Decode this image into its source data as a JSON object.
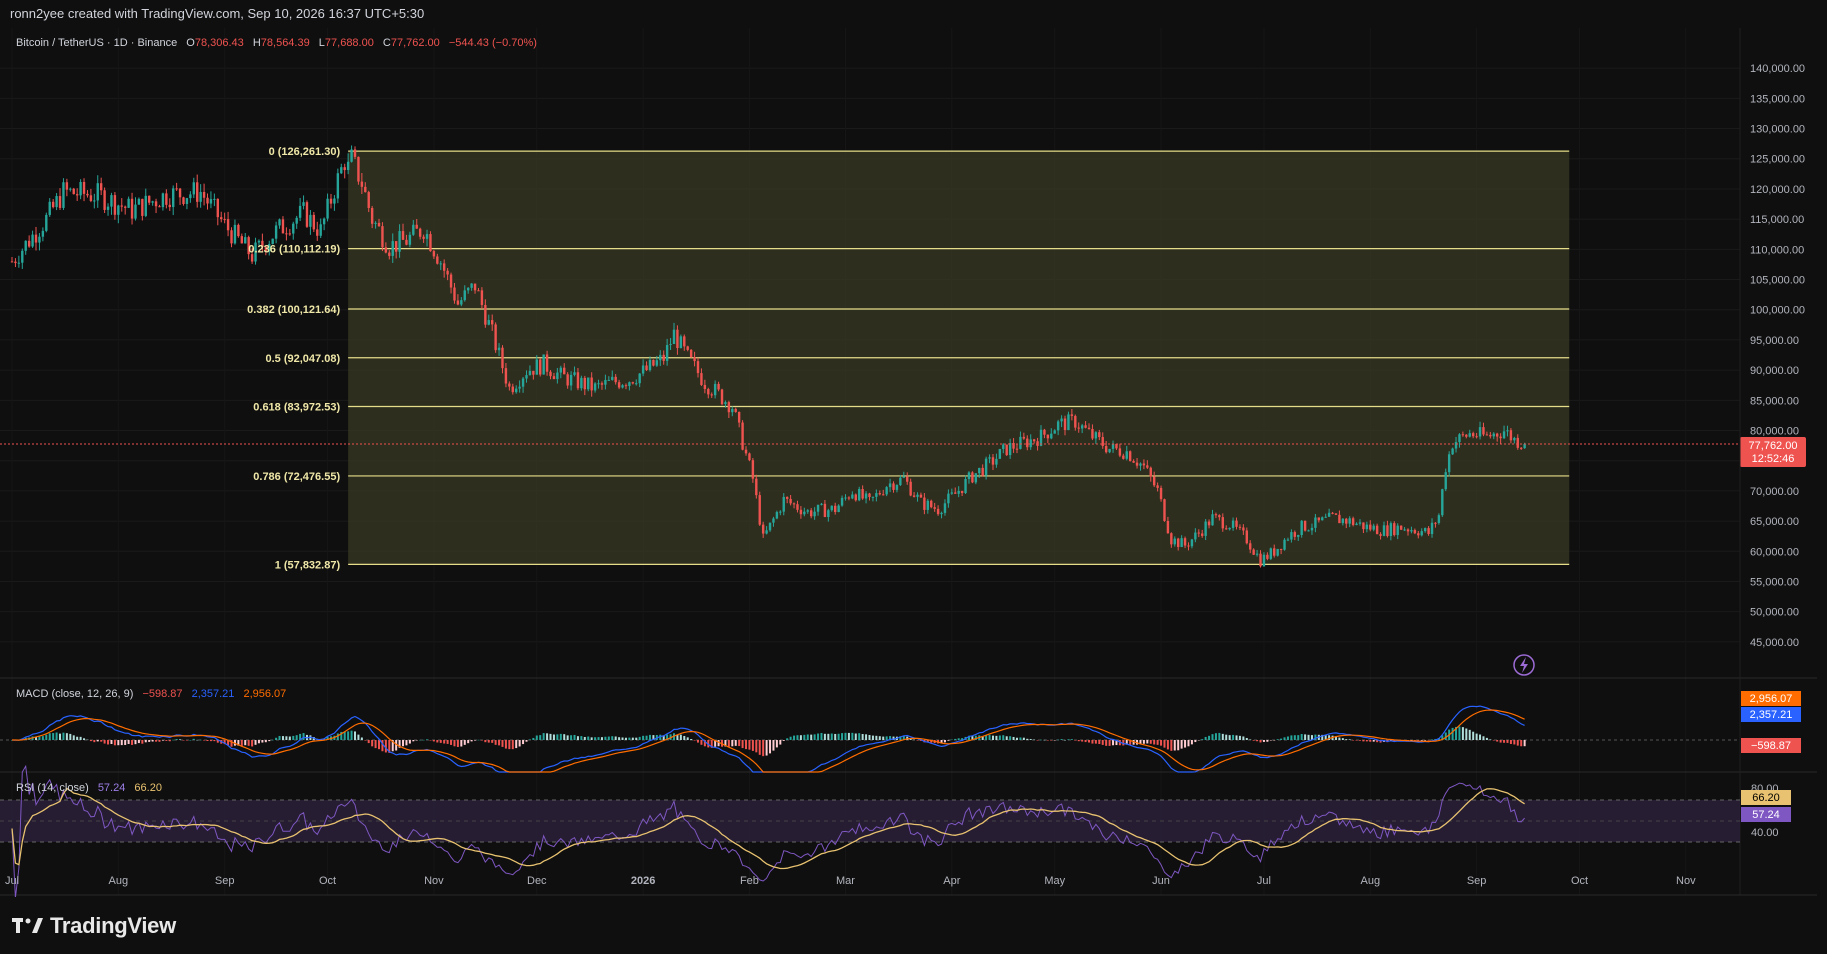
{
  "header": {
    "credit": "ronn2yee created with TradingView.com, Sep 10, 2026 16:37 UTC+5:30"
  },
  "legend": {
    "symbol": "Bitcoin / TetherUS · 1D · Binance",
    "open_label": "O",
    "open": "78,306.43",
    "high_label": "H",
    "high": "78,564.39",
    "low_label": "L",
    "low": "77,688.00",
    "close_label": "C",
    "close": "77,762.00",
    "change": "−544.43 (−0.70%)"
  },
  "branding": {
    "name": "TradingView"
  },
  "colors": {
    "up": "#26a69a",
    "down": "#ef5350",
    "fib_zone": "#3a3a24",
    "fib_line": "#e5dd8a",
    "macd": "#2962ff",
    "signal": "#ff6d00",
    "rsi": "#7e57c2",
    "rsi_ma": "#e8c270"
  },
  "chart_data": [
    {
      "type": "candlestick",
      "price_axis_ticks": [
        "140,000.00",
        "135,000.00",
        "130,000.00",
        "125,000.00",
        "120,000.00",
        "115,000.00",
        "110,000.00",
        "105,000.00",
        "100,000.00",
        "95,000.00",
        "90,000.00",
        "85,000.00",
        "80,000.00",
        "75,000.00",
        "70,000.00",
        "65,000.00",
        "60,000.00",
        "55,000.00",
        "50,000.00",
        "45,000.00"
      ],
      "price_axis_values": [
        140000,
        135000,
        130000,
        125000,
        120000,
        115000,
        110000,
        105000,
        100000,
        95000,
        90000,
        85000,
        80000,
        75000,
        70000,
        65000,
        60000,
        55000,
        50000,
        45000
      ],
      "ylim": [
        42000,
        144000
      ],
      "current_price": {
        "label": "77,762.00",
        "value": 77762,
        "countdown": "12:52:46"
      },
      "x_axis_labels": [
        "Jul",
        "Aug",
        "Sep",
        "Oct",
        "Nov",
        "Dec",
        "2026",
        "Feb",
        "Mar",
        "Apr",
        "May",
        "Jun",
        "Jul",
        "Aug",
        "Sep",
        "Oct",
        "Nov"
      ],
      "x_axis_days": [
        0,
        31,
        62,
        92,
        123,
        153,
        184,
        215,
        243,
        274,
        304,
        335,
        365,
        396,
        427,
        457,
        488
      ],
      "price_path": [
        [
          0,
          108000
        ],
        [
          10,
          115000
        ],
        [
          15,
          119500
        ],
        [
          25,
          119000
        ],
        [
          35,
          116500
        ],
        [
          45,
          119000
        ],
        [
          55,
          119500
        ],
        [
          62,
          114000
        ],
        [
          70,
          109000
        ],
        [
          77,
          113000
        ],
        [
          85,
          116000
        ],
        [
          90,
          113000
        ],
        [
          94,
          120000
        ],
        [
          98,
          126261.3
        ],
        [
          102,
          121000
        ],
        [
          105,
          115000
        ],
        [
          110,
          110500
        ],
        [
          115,
          111500
        ],
        [
          120,
          113500
        ],
        [
          125,
          108000
        ],
        [
          130,
          101000
        ],
        [
          135,
          104000
        ],
        [
          140,
          96000
        ],
        [
          145,
          87000
        ],
        [
          150,
          90000
        ],
        [
          155,
          91000
        ],
        [
          160,
          89000
        ],
        [
          165,
          88000
        ],
        [
          170,
          87000
        ],
        [
          175,
          88000
        ],
        [
          180,
          88500
        ],
        [
          185,
          90000
        ],
        [
          190,
          92000
        ],
        [
          193,
          96000
        ],
        [
          197,
          92000
        ],
        [
          202,
          88000
        ],
        [
          210,
          84000
        ],
        [
          213,
          78000
        ],
        [
          216,
          72000
        ],
        [
          219,
          62000
        ],
        [
          225,
          68500
        ],
        [
          232,
          66500
        ],
        [
          240,
          67000
        ],
        [
          245,
          70000
        ],
        [
          250,
          68000
        ],
        [
          255,
          71000
        ],
        [
          260,
          72000
        ],
        [
          265,
          68000
        ],
        [
          270,
          67000
        ],
        [
          275,
          69500
        ],
        [
          280,
          72500
        ],
        [
          285,
          74500
        ],
        [
          290,
          77000
        ],
        [
          295,
          78000
        ],
        [
          300,
          79000
        ],
        [
          305,
          81000
        ],
        [
          310,
          81500
        ],
        [
          315,
          79000
        ],
        [
          320,
          77000
        ],
        [
          325,
          76500
        ],
        [
          330,
          74000
        ],
        [
          334,
          70000
        ],
        [
          338,
          62000
        ],
        [
          342,
          61000
        ],
        [
          346,
          63000
        ],
        [
          350,
          65500
        ],
        [
          355,
          64500
        ],
        [
          360,
          62000
        ],
        [
          364,
          58500
        ],
        [
          368,
          60000
        ],
        [
          372,
          62500
        ],
        [
          376,
          64000
        ],
        [
          380,
          64500
        ],
        [
          385,
          65500
        ],
        [
          390,
          65000
        ],
        [
          395,
          64000
        ],
        [
          400,
          63500
        ],
        [
          405,
          64000
        ],
        [
          410,
          63500
        ],
        [
          413,
          63000
        ],
        [
          416,
          66000
        ],
        [
          418,
          74000
        ],
        [
          420,
          78000
        ],
        [
          425,
          79500
        ],
        [
          430,
          79000
        ],
        [
          435,
          80000
        ],
        [
          438,
          78500
        ],
        [
          441,
          77762
        ]
      ],
      "last_day": 441,
      "fibonacci": [
        {
          "level": "0",
          "price": 126261.3,
          "label": "0 (126,261.30)"
        },
        {
          "level": "0.236",
          "price": 110112.19,
          "label": "0.236 (110,112.19)"
        },
        {
          "level": "0.382",
          "price": 100121.64,
          "label": "0.382 (100,121.64)"
        },
        {
          "level": "0.5",
          "price": 92047.08,
          "label": "0.5 (92,047.08)"
        },
        {
          "level": "0.618",
          "price": 83972.53,
          "label": "0.618 (83,972.53)"
        },
        {
          "level": "0.786",
          "price": 72476.55,
          "label": "0.786 (72,476.55)"
        },
        {
          "level": "1",
          "price": 57832.87,
          "label": "1 (57,832.87)"
        }
      ],
      "fib_start_day": 98,
      "fib_end_day": 454
    },
    {
      "type": "line",
      "name": "MACD",
      "legend_title": "MACD (close, 12, 26, 9)",
      "values_text": {
        "histogram": "−598.87",
        "macd": "2,357.21",
        "signal": "2,956.07"
      },
      "axis_histogram": "−598.87",
      "axis_macd": "2,357.21",
      "axis_signal": "2,956.07"
    },
    {
      "type": "line",
      "name": "RSI",
      "legend_title": "RSI (14, close)",
      "values_text": {
        "rsi": "57.24",
        "ma": "66.20"
      },
      "axis_ticks": [
        "80.00",
        "40.00"
      ],
      "axis_rsi": "57.24",
      "axis_ma": "66.20",
      "ylim": [
        20,
        85
      ]
    }
  ]
}
